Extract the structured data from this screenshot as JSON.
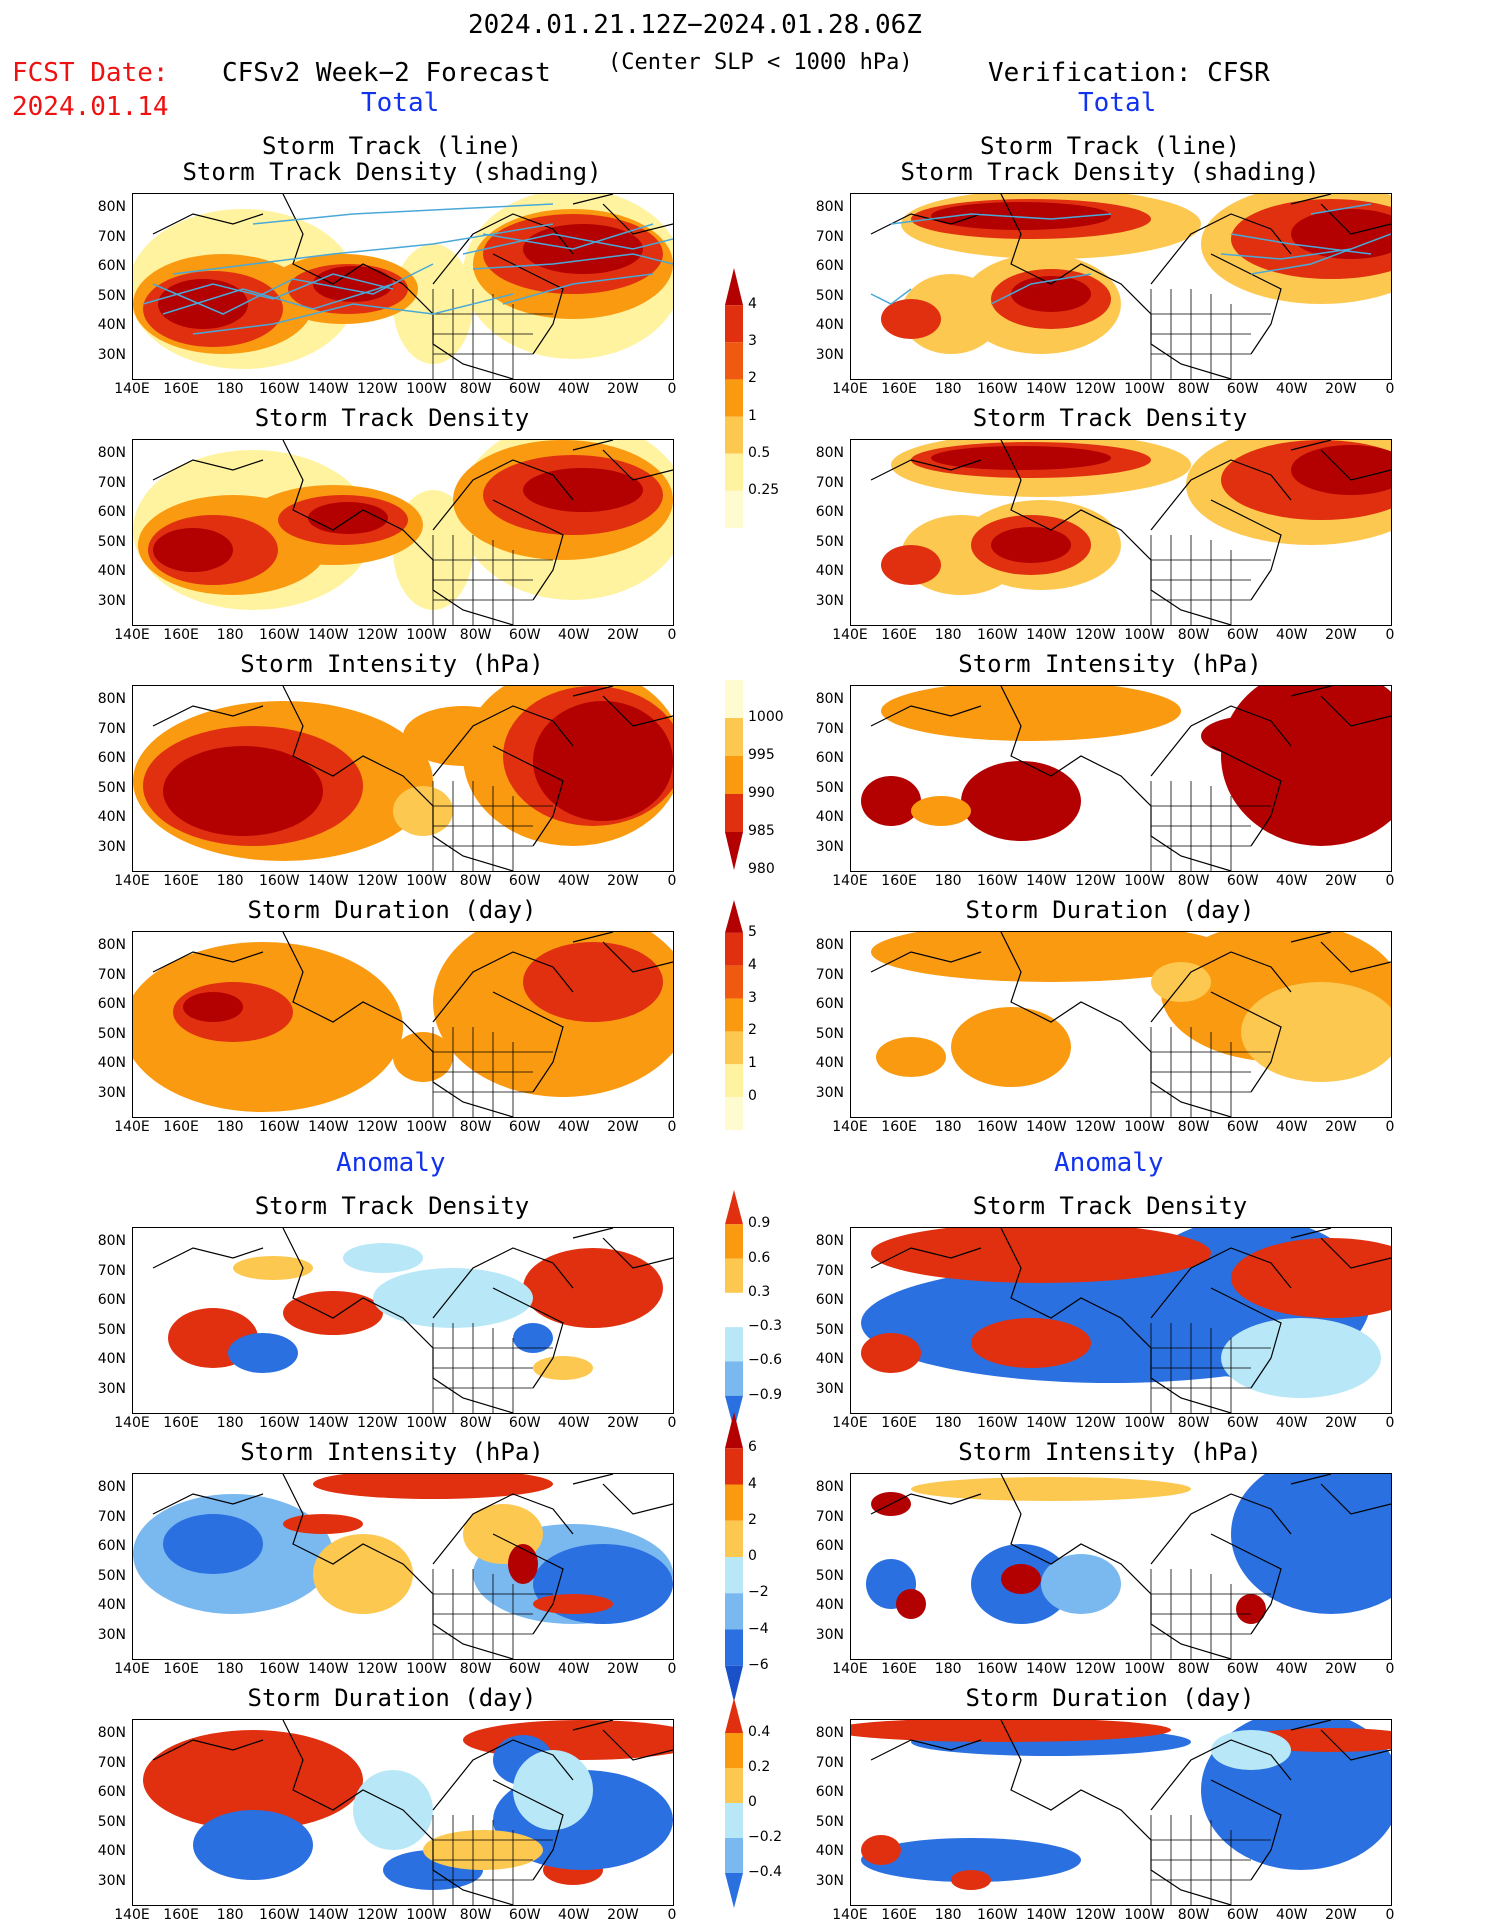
{
  "header": {
    "period": "2024.01.21.12Z−2024.01.28.06Z",
    "fcst_label": "FCST Date:",
    "fcst_date": "2024.01.14",
    "left_title": "CFSv2 Week−2 Forecast",
    "subtitle": "(Center SLP < 1000 hPa)",
    "right_title": "Verification: CFSR",
    "total_left": "Total",
    "total_right": "Total",
    "anomaly_left": "Anomaly",
    "anomaly_right": "Anomaly"
  },
  "axes": {
    "lat_labels": [
      "80N",
      "70N",
      "60N",
      "50N",
      "40N",
      "30N"
    ],
    "lon_labels": [
      "140E",
      "160E",
      "180",
      "160W",
      "140W",
      "120W",
      "100W",
      "80W",
      "60W",
      "40W",
      "20W",
      "0"
    ]
  },
  "panels": {
    "row1_title": "Storm Track (line)",
    "row1_title2": "Storm Track Density (shading)",
    "row2_title": "Storm Track Density",
    "row3_title": "Storm Intensity (hPa)",
    "row4_title": "Storm Duration (day)",
    "row5_title": "Storm Track Density",
    "row6_title": "Storm Intensity (hPa)",
    "row7_title": "Storm Duration (day)"
  },
  "colorbars": {
    "density": [
      "4",
      "3",
      "2",
      "1",
      "0.5",
      "0.25"
    ],
    "intensity": [
      "1000",
      "995",
      "990",
      "985",
      "980"
    ],
    "duration": [
      "5",
      "4",
      "3",
      "2",
      "1",
      "0"
    ],
    "density_anom": [
      "0.9",
      "0.6",
      "0.3",
      "−0.3",
      "−0.6",
      "−0.9"
    ],
    "intensity_anom": [
      "6",
      "4",
      "2",
      "0",
      "−2",
      "−4",
      "−6"
    ],
    "duration_anom": [
      "0.4",
      "0.2",
      "0",
      "−0.2",
      "−0.4"
    ]
  },
  "colors": {
    "dark_red": "#b30000",
    "red": "#e03010",
    "orange_red": "#f05a10",
    "orange": "#fa9a10",
    "light_orange": "#fcc850",
    "yellow": "#fff3a0",
    "light_blue": "#b8e8f8",
    "mid_blue": "#7ab8f0",
    "blue": "#2a70e0",
    "track_line": "#4aa8d8"
  }
}
